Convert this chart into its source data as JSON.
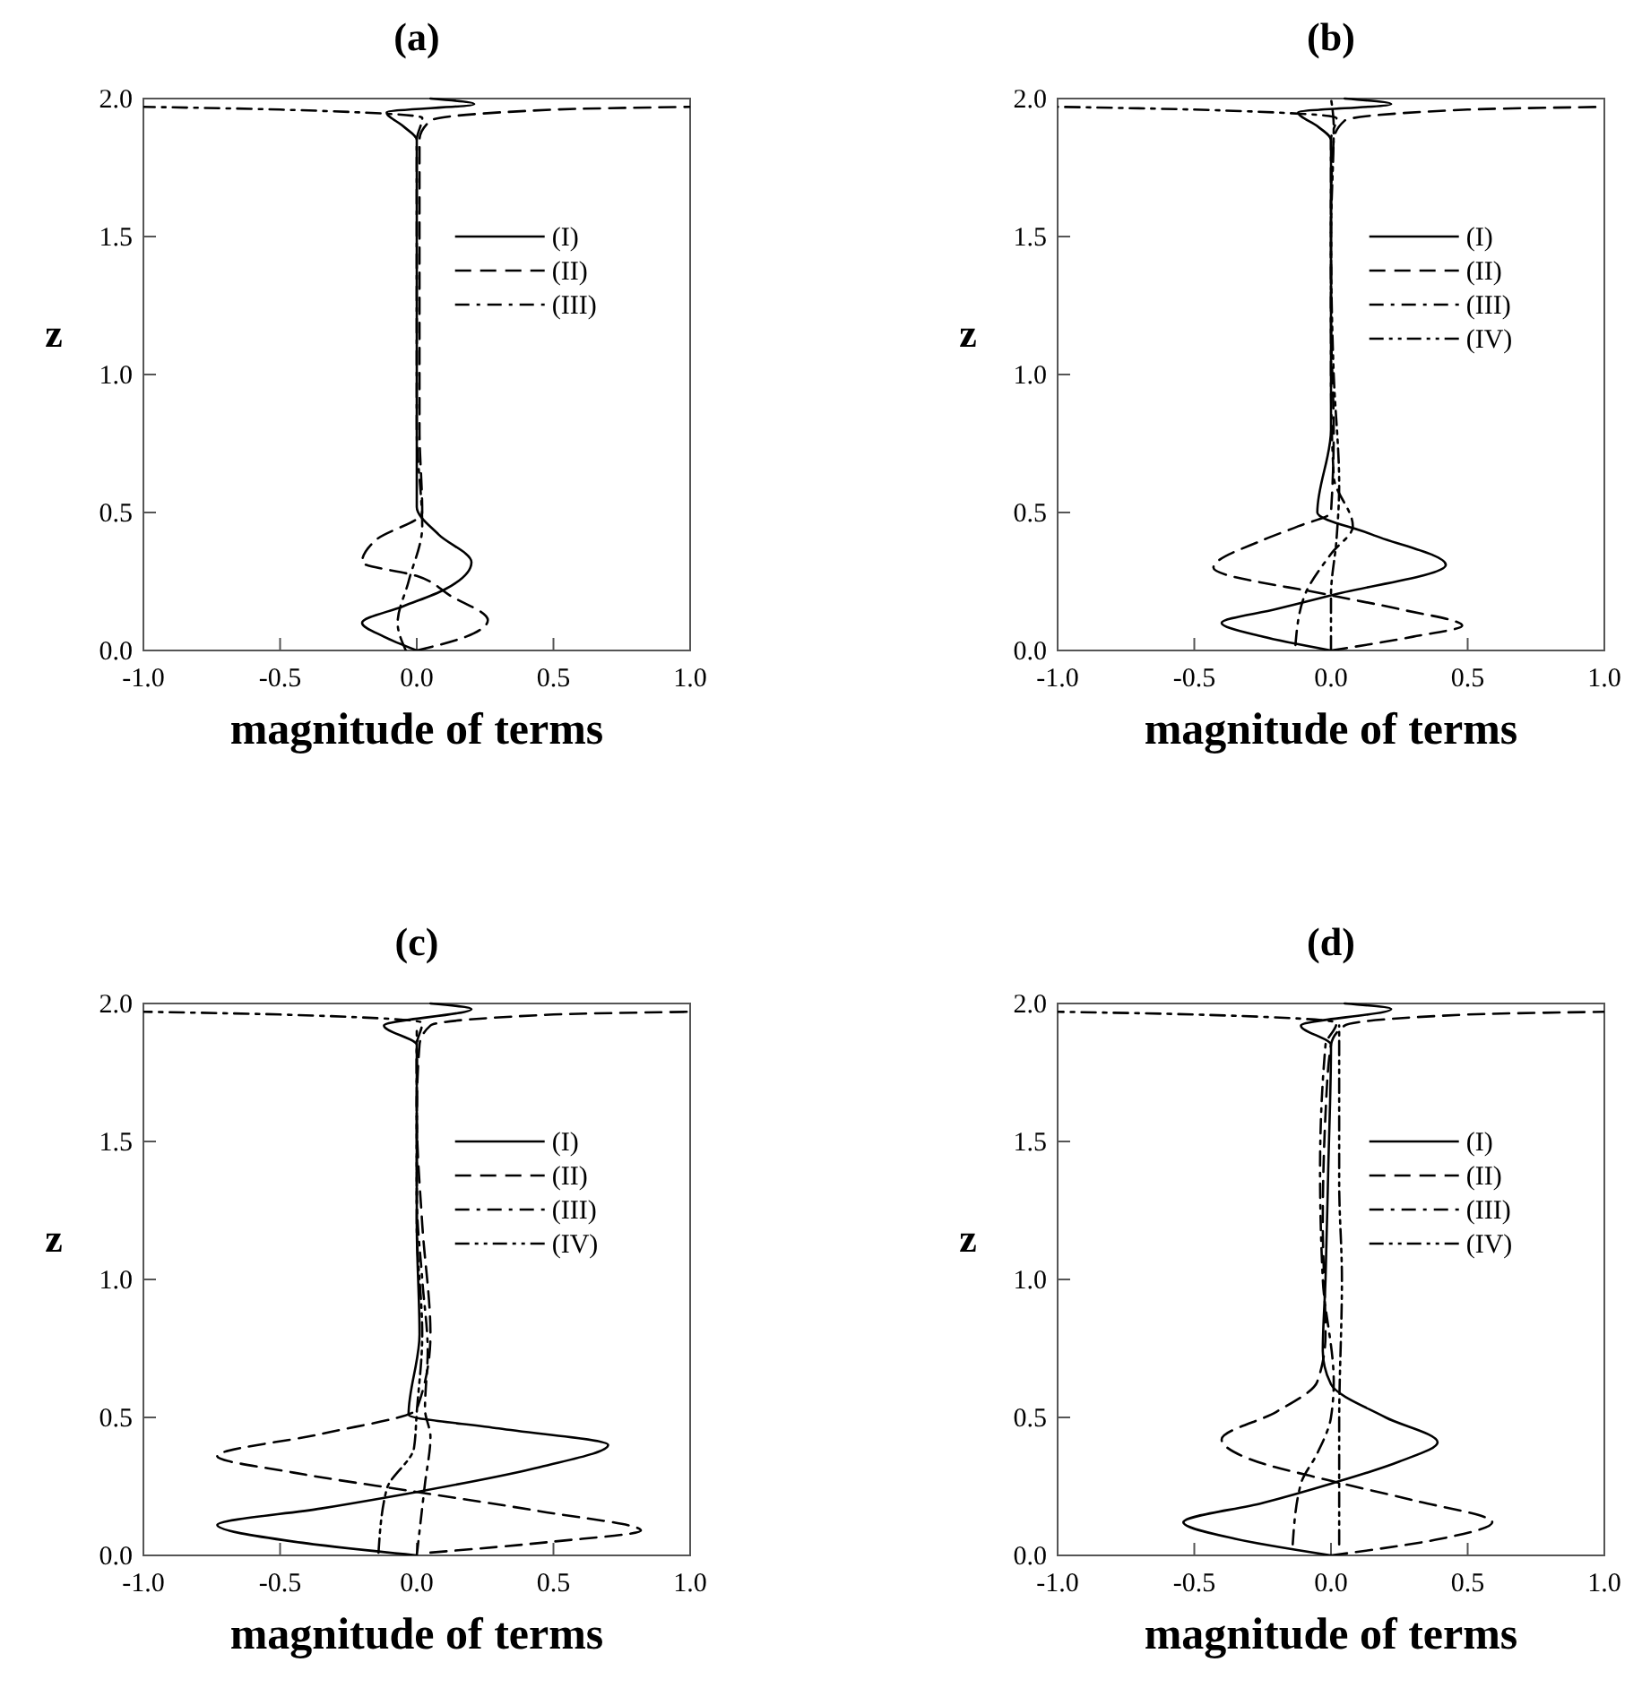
{
  "chart_data": [
    {
      "type": "line",
      "title": "(a)",
      "xlabel": "magnitude of terms",
      "ylabel": "z",
      "xlim": [
        -1,
        1
      ],
      "ylim": [
        0,
        2
      ],
      "xticks": [
        {
          "value": -1,
          "label": "-1.0"
        },
        {
          "value": -0.5,
          "label": "-0.5"
        },
        {
          "value": 0,
          "label": "0.0"
        },
        {
          "value": 0.5,
          "label": "0.5"
        },
        {
          "value": 1,
          "label": "1.0"
        }
      ],
      "yticks": [
        {
          "value": 0,
          "label": "0.0"
        },
        {
          "value": 0.5,
          "label": "0.5"
        },
        {
          "value": 1,
          "label": "1.0"
        },
        {
          "value": 1.5,
          "label": "1.5"
        },
        {
          "value": 2,
          "label": "2.0"
        }
      ],
      "legend": "top right",
      "series": [
        {
          "name": "(I)",
          "color": "#000000",
          "line_style": "solid",
          "x": [
            0,
            -0.12,
            -0.2,
            -0.05,
            0.1,
            0.2,
            0.08,
            0,
            0,
            0,
            0,
            0,
            -0.05,
            -0.11,
            0.21,
            0.05
          ],
          "values": [
            0,
            0.05,
            0.1,
            0.16,
            0.22,
            0.32,
            0.42,
            0.52,
            0.8,
            1.2,
            1.6,
            1.85,
            1.9,
            1.95,
            1.98,
            2.0
          ]
        },
        {
          "name": "(II)",
          "color": "#000000",
          "line_style": "dashed",
          "x": [
            0,
            0.18,
            0.26,
            0.12,
            0,
            -0.2,
            -0.15,
            0.02,
            0.01,
            0.01,
            0.01,
            0.01,
            0.05,
            0.5,
            1.0
          ],
          "values": [
            0,
            0.05,
            0.11,
            0.2,
            0.27,
            0.32,
            0.4,
            0.5,
            0.8,
            1.2,
            1.6,
            1.85,
            1.92,
            1.96,
            1.97
          ]
        },
        {
          "name": "(III)",
          "color": "#000000",
          "line_style": "dashdot",
          "x": [
            -0.04,
            -0.07,
            -0.03,
            0.02,
            0,
            0,
            0,
            0,
            0.02,
            -0.5,
            -1.0
          ],
          "values": [
            0,
            0.1,
            0.25,
            0.45,
            0.8,
            1.2,
            1.6,
            1.85,
            1.93,
            1.96,
            1.97
          ]
        }
      ]
    },
    {
      "type": "line",
      "title": "(b)",
      "xlabel": "magnitude of terms",
      "ylabel": "z",
      "xlim": [
        -1,
        1
      ],
      "ylim": [
        0,
        2
      ],
      "xticks": [
        {
          "value": -1,
          "label": "-1.0"
        },
        {
          "value": -0.5,
          "label": "-0.5"
        },
        {
          "value": 0,
          "label": "0.0"
        },
        {
          "value": 0.5,
          "label": "0.5"
        },
        {
          "value": 1,
          "label": "1.0"
        }
      ],
      "yticks": [
        {
          "value": 0,
          "label": "0.0"
        },
        {
          "value": 0.5,
          "label": "0.5"
        },
        {
          "value": 1,
          "label": "1.0"
        },
        {
          "value": 1.5,
          "label": "1.5"
        },
        {
          "value": 2,
          "label": "2.0"
        }
      ],
      "legend": "top right",
      "series": [
        {
          "name": "(I)",
          "color": "#000000",
          "line_style": "solid",
          "x": [
            0,
            -0.25,
            -0.4,
            -0.2,
            0,
            0.42,
            0.15,
            -0.05,
            0,
            0,
            0,
            0,
            -0.05,
            -0.12,
            0.22,
            0.05
          ],
          "values": [
            0,
            0.05,
            0.1,
            0.15,
            0.2,
            0.31,
            0.42,
            0.5,
            0.8,
            1.2,
            1.6,
            1.85,
            1.9,
            1.95,
            1.98,
            2.0
          ]
        },
        {
          "name": "(II)",
          "color": "#000000",
          "line_style": "dashed",
          "x": [
            0,
            0.3,
            0.48,
            0.25,
            0,
            -0.43,
            -0.25,
            -0.12,
            0,
            0.01,
            0,
            0,
            0.01,
            0.05,
            0.5,
            1.0
          ],
          "values": [
            0,
            0.05,
            0.09,
            0.15,
            0.2,
            0.3,
            0.4,
            0.45,
            0.5,
            0.8,
            1.2,
            1.6,
            1.85,
            1.92,
            1.96,
            1.97
          ]
        },
        {
          "name": "(III)",
          "color": "#000000",
          "line_style": "dashdot",
          "x": [
            -0.13,
            -0.1,
            0,
            0.08,
            0.01,
            0,
            0,
            0,
            0.02,
            -0.5,
            -1.0
          ],
          "values": [
            0.02,
            0.19,
            0.35,
            0.45,
            0.63,
            1.0,
            1.5,
            1.85,
            1.93,
            1.96,
            1.97
          ]
        },
        {
          "name": "(IV)",
          "color": "#000000",
          "line_style": "dashdotdot",
          "x": [
            0,
            0,
            0.02,
            0.03,
            0.01,
            0,
            0.01,
            0
          ],
          "values": [
            0,
            0.2,
            0.4,
            0.6,
            1.0,
            1.5,
            1.9,
            2.0
          ]
        }
      ]
    },
    {
      "type": "line",
      "title": "(c)",
      "xlabel": "magnitude of terms",
      "ylabel": "z",
      "xlim": [
        -1,
        1
      ],
      "ylim": [
        0,
        2
      ],
      "xticks": [
        {
          "value": -1,
          "label": "-1.0"
        },
        {
          "value": -0.5,
          "label": "-0.5"
        },
        {
          "value": 0,
          "label": "0.0"
        },
        {
          "value": 0.5,
          "label": "0.5"
        },
        {
          "value": 1,
          "label": "1.0"
        }
      ],
      "yticks": [
        {
          "value": 0,
          "label": "0.0"
        },
        {
          "value": 0.5,
          "label": "0.5"
        },
        {
          "value": 1,
          "label": "1.0"
        },
        {
          "value": 1.5,
          "label": "1.5"
        },
        {
          "value": 2,
          "label": "2.0"
        }
      ],
      "legend": "top right",
      "series": [
        {
          "name": "(I)",
          "color": "#000000",
          "line_style": "solid",
          "x": [
            0,
            -0.45,
            -0.73,
            -0.35,
            0,
            0.45,
            0.7,
            0.3,
            -0.03,
            0.01,
            0,
            0,
            0,
            -0.12,
            0.2,
            0.05
          ],
          "values": [
            0,
            0.05,
            0.11,
            0.17,
            0.23,
            0.32,
            0.4,
            0.46,
            0.51,
            0.8,
            1.2,
            1.6,
            1.85,
            1.92,
            1.98,
            2.0
          ]
        },
        {
          "name": "(II)",
          "color": "#000000",
          "line_style": "dashed",
          "x": [
            0.05,
            0.5,
            0.82,
            0.45,
            0,
            -0.45,
            -0.73,
            -0.35,
            0,
            0.05,
            0.02,
            0,
            0.01,
            0.05,
            0.5,
            1.0
          ],
          "values": [
            0.01,
            0.05,
            0.09,
            0.16,
            0.23,
            0.3,
            0.36,
            0.44,
            0.53,
            0.8,
            1.2,
            1.6,
            1.85,
            1.92,
            1.96,
            1.97
          ]
        },
        {
          "name": "(III)",
          "color": "#000000",
          "line_style": "dashdot",
          "x": [
            0,
            0.03,
            0.05,
            0.03,
            0.04,
            0.02,
            0,
            0,
            0,
            0.02,
            -0.5,
            -1.0
          ],
          "values": [
            0,
            0.26,
            0.43,
            0.53,
            0.74,
            1.0,
            1.3,
            1.6,
            1.85,
            1.93,
            1.96,
            1.97
          ]
        },
        {
          "name": "(IV)",
          "color": "#000000",
          "line_style": "dashdotdot",
          "x": [
            -0.14,
            -0.11,
            -0.01,
            0,
            0.02,
            0,
            0,
            0
          ],
          "values": [
            0.01,
            0.24,
            0.39,
            0.52,
            0.8,
            1.2,
            1.6,
            1.9
          ]
        }
      ]
    },
    {
      "type": "line",
      "title": "(d)",
      "xlabel": "magnitude of terms",
      "ylabel": "z",
      "xlim": [
        -1,
        1
      ],
      "ylim": [
        0,
        2
      ],
      "xticks": [
        {
          "value": -1,
          "label": "-1.0"
        },
        {
          "value": -0.5,
          "label": "-0.5"
        },
        {
          "value": 0,
          "label": "0.0"
        },
        {
          "value": 0.5,
          "label": "0.5"
        },
        {
          "value": 1,
          "label": "1.0"
        }
      ],
      "yticks": [
        {
          "value": 0,
          "label": "0.0"
        },
        {
          "value": 0.5,
          "label": "0.5"
        },
        {
          "value": 1,
          "label": "1.0"
        },
        {
          "value": 1.5,
          "label": "1.5"
        },
        {
          "value": 2,
          "label": "2.0"
        }
      ],
      "legend": "top right",
      "series": [
        {
          "name": "(I)",
          "color": "#000000",
          "line_style": "solid",
          "x": [
            0,
            -0.35,
            -0.54,
            -0.25,
            0,
            0.25,
            0.39,
            0.2,
            0,
            -0.03,
            -0.02,
            -0.01,
            0,
            -0.11,
            0.22,
            0.05
          ],
          "values": [
            0,
            0.06,
            0.12,
            0.19,
            0.26,
            0.34,
            0.41,
            0.5,
            0.62,
            0.74,
            1.0,
            1.4,
            1.85,
            1.92,
            1.98,
            2.0
          ]
        },
        {
          "name": "(II)",
          "color": "#000000",
          "line_style": "dashed",
          "x": [
            0,
            0.4,
            0.59,
            0.3,
            0,
            -0.3,
            -0.4,
            -0.2,
            -0.05,
            -0.02,
            -0.03,
            -0.02,
            0,
            0.05,
            0.5,
            1.0
          ],
          "values": [
            0,
            0.06,
            0.12,
            0.2,
            0.27,
            0.35,
            0.42,
            0.52,
            0.63,
            0.8,
            1.2,
            1.6,
            1.85,
            1.92,
            1.96,
            1.97
          ]
        },
        {
          "name": "(III)",
          "color": "#000000",
          "line_style": "dashdot",
          "x": [
            -0.14,
            -0.11,
            -0.05,
            0,
            0.01,
            -0.03,
            -0.04,
            -0.02,
            0.02,
            -0.5,
            -1.0
          ],
          "values": [
            0.04,
            0.26,
            0.37,
            0.5,
            0.63,
            1.0,
            1.4,
            1.85,
            1.93,
            1.96,
            1.97
          ]
        },
        {
          "name": "(IV)",
          "color": "#000000",
          "line_style": "dashdotdot",
          "x": [
            0.03,
            0.03,
            0.04,
            0.03,
            0.03,
            0.03
          ],
          "values": [
            0.04,
            0.48,
            1.0,
            1.35,
            1.7,
            1.92
          ]
        }
      ]
    }
  ]
}
